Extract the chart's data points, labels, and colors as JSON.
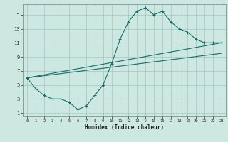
{
  "title": "",
  "xlabel": "Humidex (Indice chaleur)",
  "ylabel": "",
  "bg_color": "#cce8e0",
  "grid_color": "#aaccc4",
  "line_color": "#1a6b6b",
  "xlim": [
    -0.5,
    23.5
  ],
  "ylim": [
    0.5,
    16.5
  ],
  "xticks": [
    0,
    1,
    2,
    3,
    4,
    5,
    6,
    7,
    8,
    9,
    10,
    11,
    12,
    13,
    14,
    15,
    16,
    17,
    18,
    19,
    20,
    21,
    22,
    23
  ],
  "yticks": [
    1,
    3,
    5,
    7,
    9,
    11,
    13,
    15
  ],
  "curve_x": [
    0,
    1,
    2,
    3,
    4,
    5,
    6,
    7,
    8,
    9,
    10,
    11,
    12,
    13,
    14,
    15,
    16,
    17,
    18,
    19,
    20,
    21,
    22,
    23
  ],
  "curve_y": [
    6,
    4.5,
    3.5,
    3.0,
    3.0,
    2.5,
    1.5,
    2.0,
    3.5,
    5.0,
    8.0,
    11.5,
    14.0,
    15.5,
    16.0,
    15.0,
    15.5,
    14.0,
    13.0,
    12.5,
    11.5,
    11.0,
    11.0,
    11.0
  ],
  "line1_x": [
    0,
    23
  ],
  "line1_y": [
    6.0,
    9.5
  ],
  "line2_x": [
    0,
    23
  ],
  "line2_y": [
    6.0,
    11.0
  ]
}
